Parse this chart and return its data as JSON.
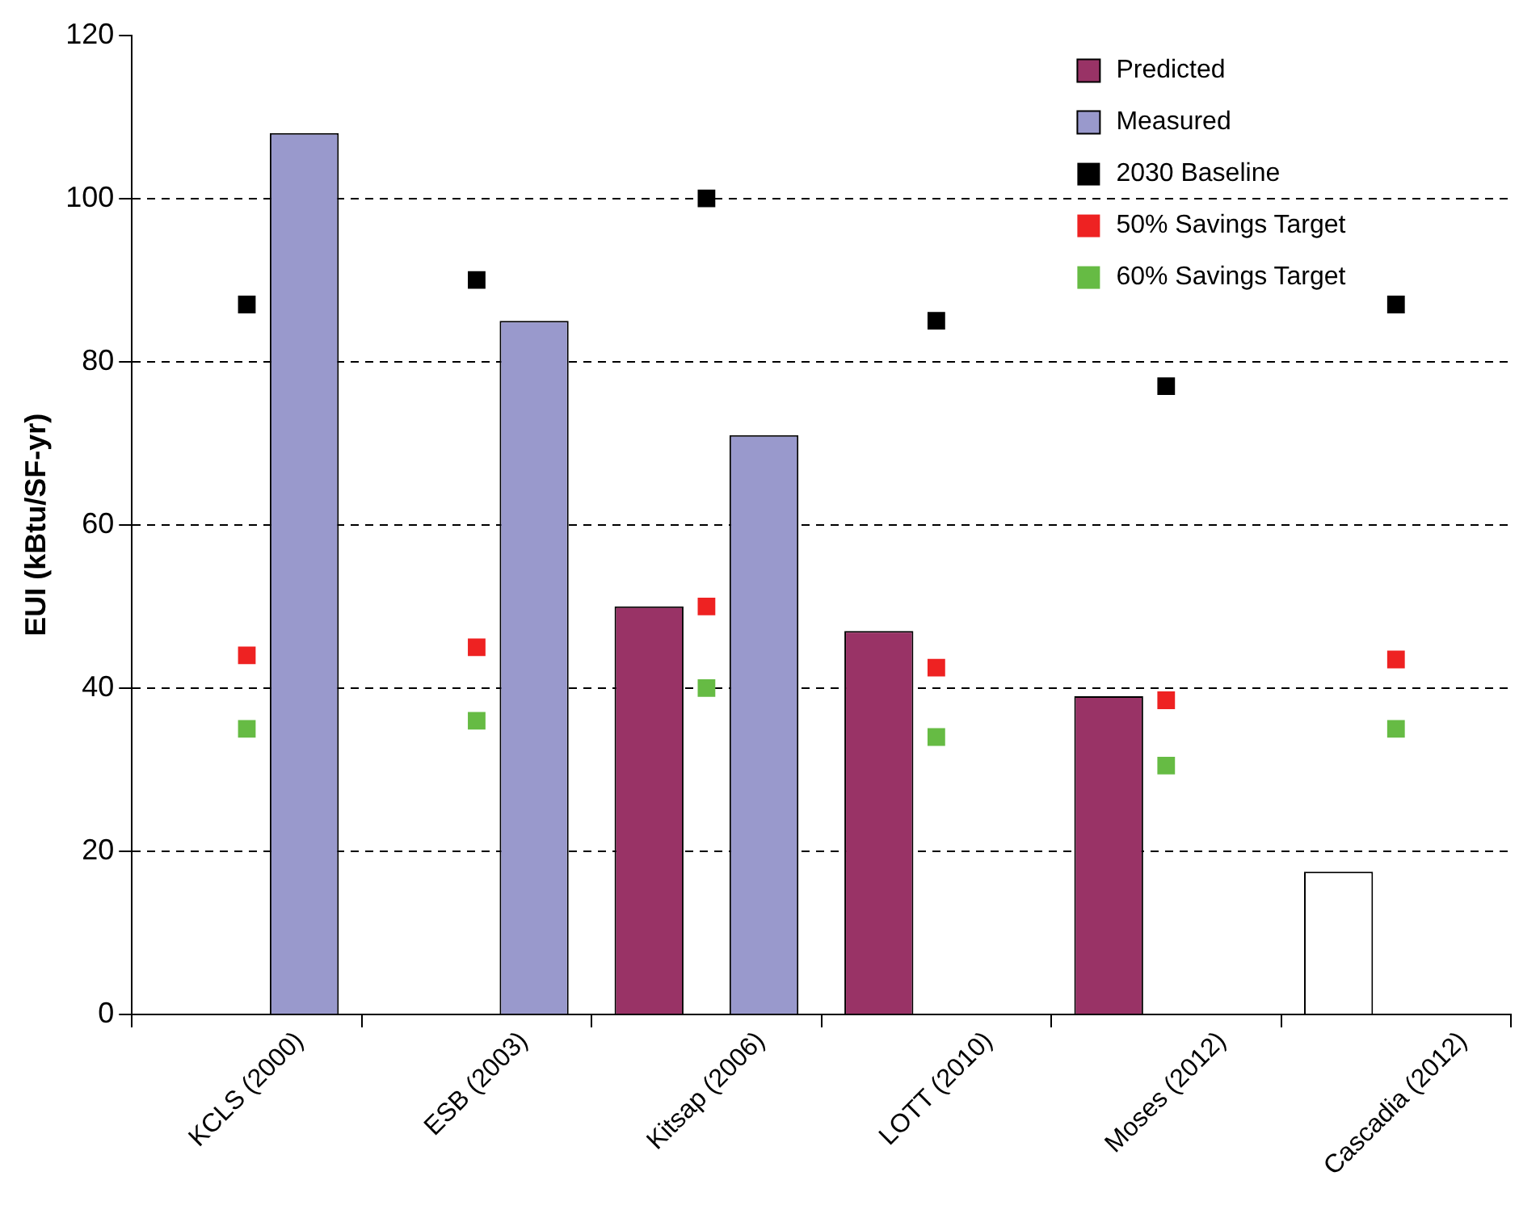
{
  "chart_data": {
    "type": "bar",
    "ylabel": "EUI (kBtu/SF-yr)",
    "categories": [
      "KCLS (2000)",
      "ESB (2003)",
      "Kitsap (2006)",
      "LOTT (2010)",
      "Moses (2012)",
      "Cascadia (2012)"
    ],
    "series": [
      {
        "name": "Predicted",
        "color": "#993366",
        "colors": [
          "#993366",
          "#993366",
          "#993366",
          "#993366",
          "#993366",
          "#ffffff"
        ],
        "values": [
          null,
          null,
          50,
          47,
          39,
          17.5
        ]
      },
      {
        "name": "Measured",
        "color": "#9999cc",
        "values": [
          108,
          85,
          71,
          null,
          null,
          null
        ]
      },
      {
        "name": "2030 Baseline",
        "type": "scatter",
        "color": "#000000",
        "x": [
          "KCLS (2000)",
          "ESB (2003)",
          "Kitsap (2006)",
          "LOTT (2010)",
          "Moses (2012)",
          "Cascadia (2012)"
        ],
        "values": [
          87,
          90,
          100,
          85,
          77,
          87
        ]
      },
      {
        "name": "50% Savings Target",
        "type": "scatter",
        "color": "#ee2222",
        "x": [
          "KCLS (2000)",
          "ESB (2003)",
          "Kitsap (2006)",
          "LOTT (2010)",
          "Moses (2012)",
          "Cascadia (2012)"
        ],
        "values": [
          44,
          45,
          50,
          42.5,
          38.5,
          43.5
        ]
      },
      {
        "name": "60% Savings Target",
        "type": "scatter",
        "color": "#66bb44",
        "x": [
          "KCLS (2000)",
          "ESB (2003)",
          "Kitsap (2006)",
          "LOTT (2010)",
          "Moses (2012)",
          "Cascadia (2012)"
        ],
        "values": [
          35,
          36,
          40,
          34,
          30.5,
          35
        ]
      }
    ],
    "marker": "square",
    "ylim": [
      0,
      120
    ],
    "yticks": [
      0,
      20,
      40,
      60,
      80,
      100,
      120
    ],
    "grid": "y",
    "legend": "top right"
  }
}
